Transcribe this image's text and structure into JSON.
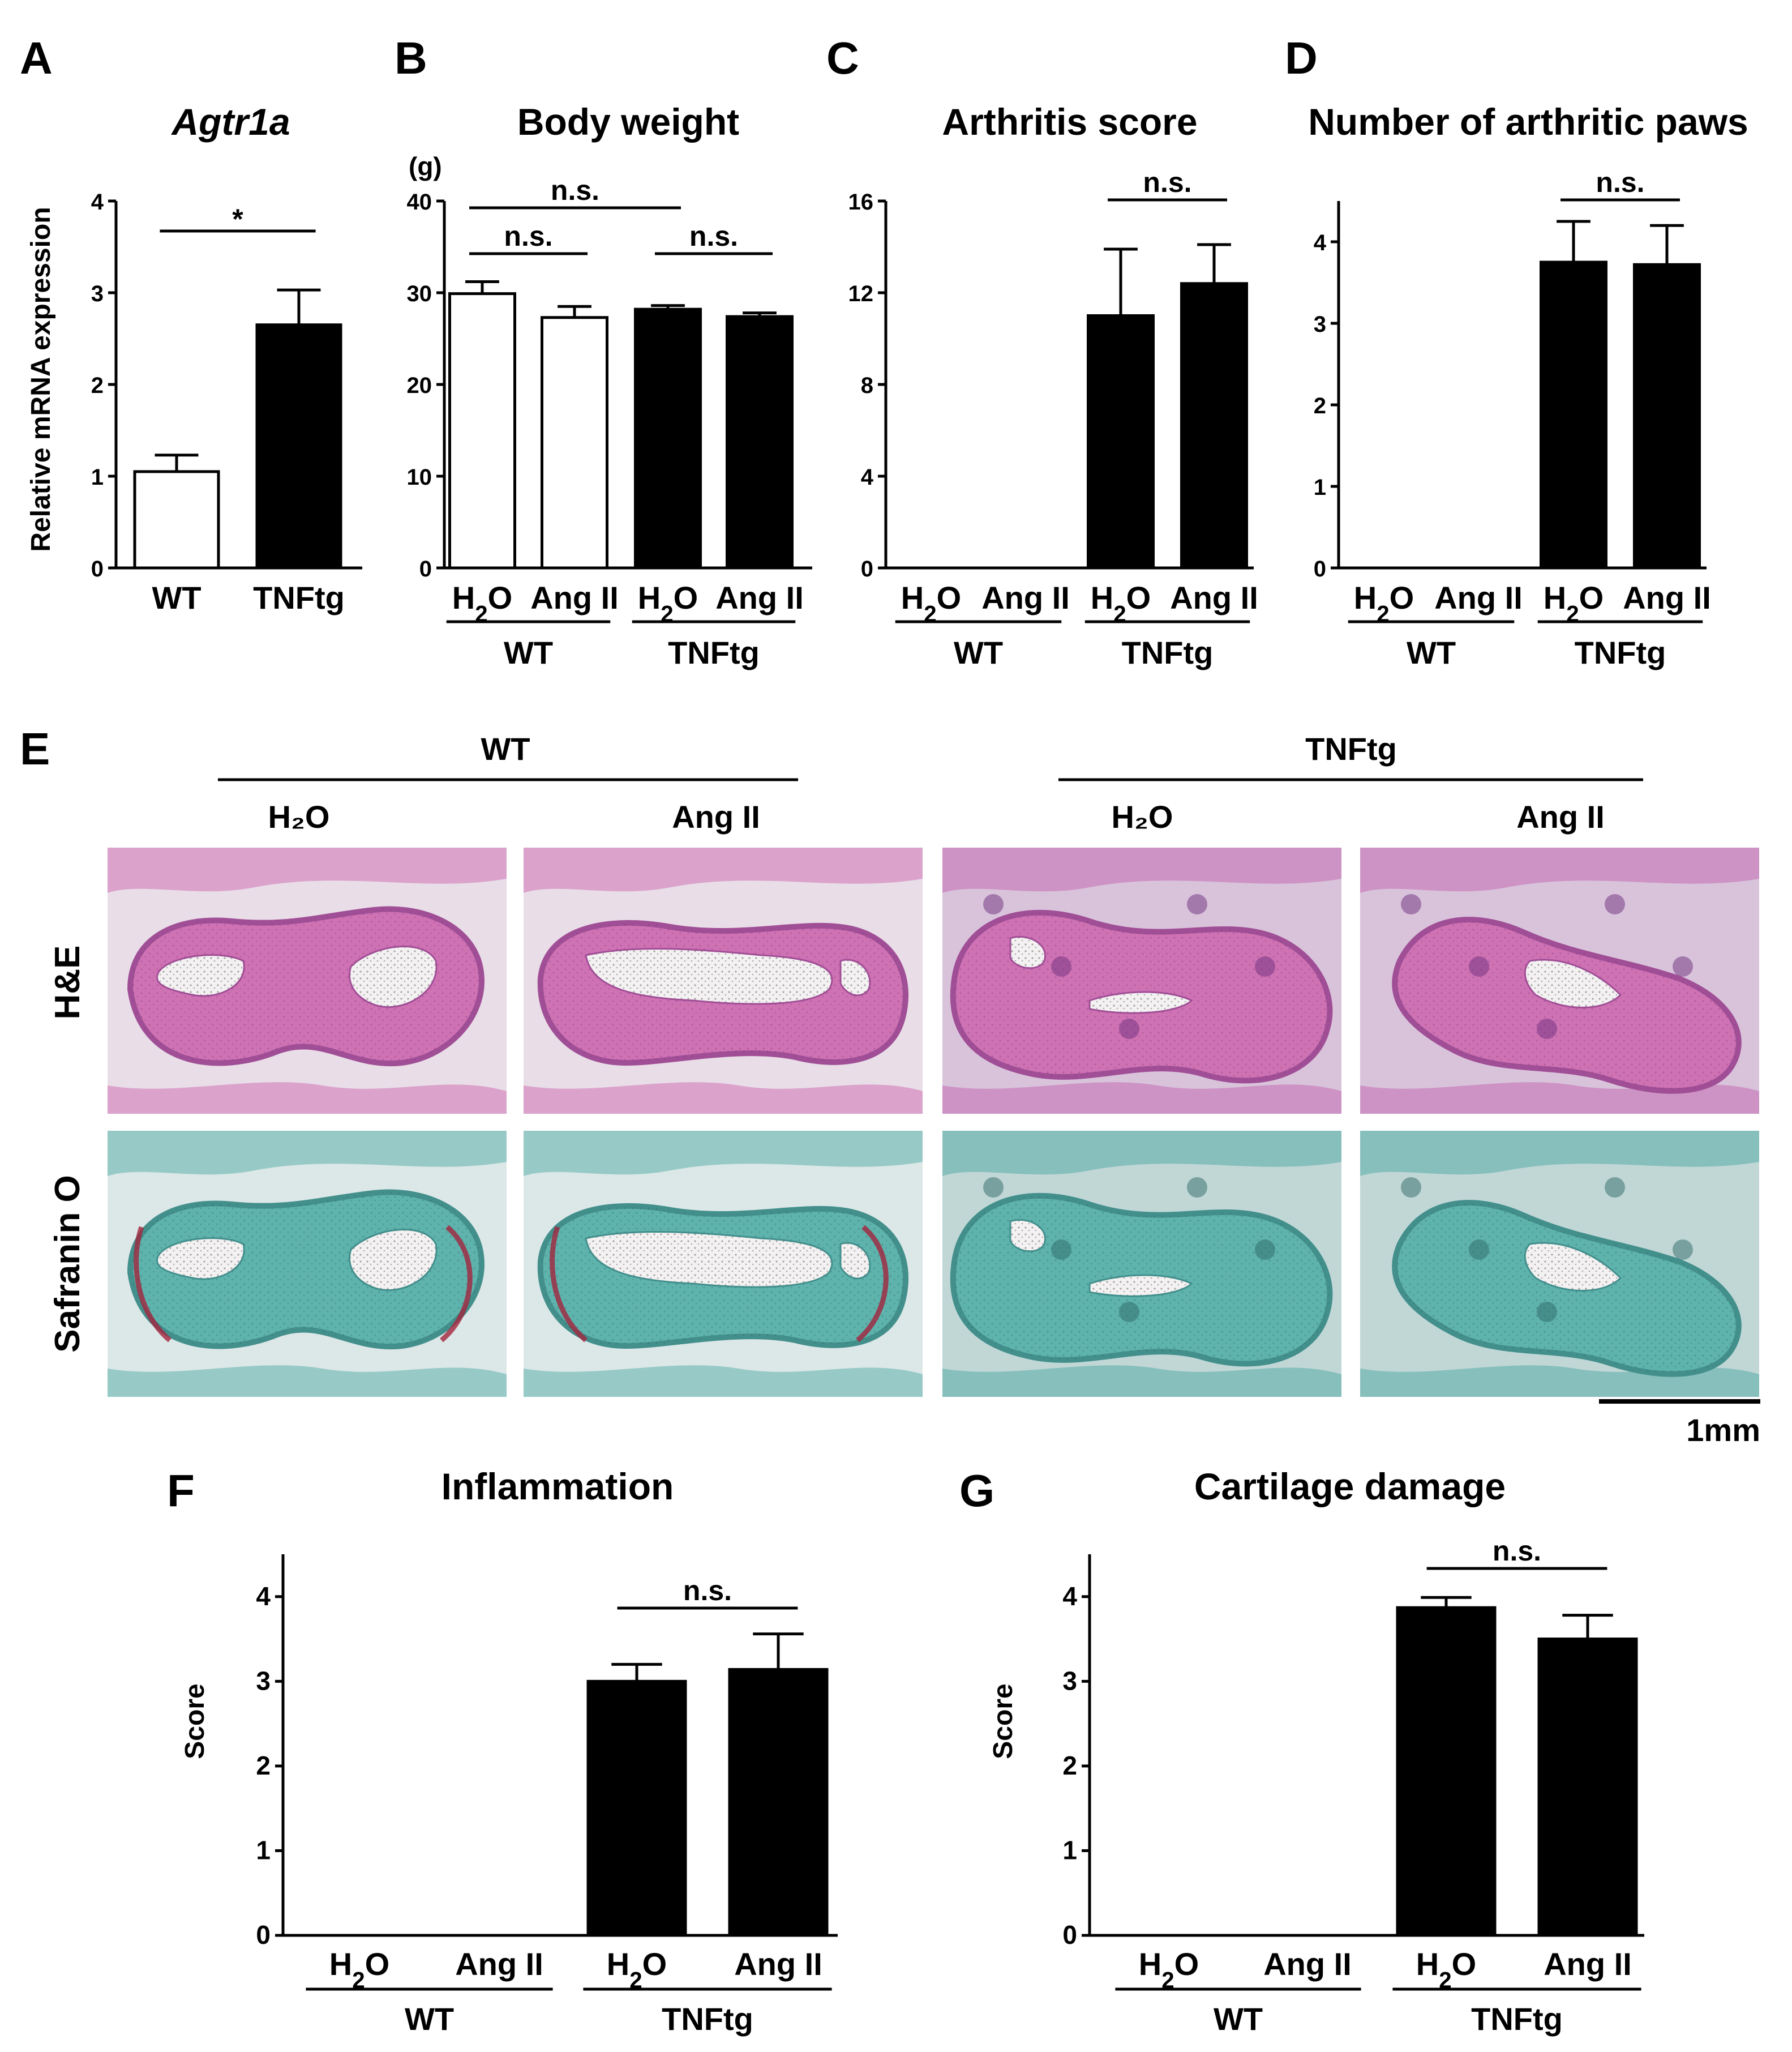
{
  "chart_data": [
    {
      "id": "A",
      "type": "bar",
      "panel_label": "A",
      "title": "Agtr1a",
      "ylabel": "Relative mRNA expression",
      "xlabel": "",
      "ylim": [
        0,
        4
      ],
      "yticks": [
        "0",
        "1",
        "2",
        "3",
        "4"
      ],
      "categories": [
        "WT",
        "TNFtg"
      ],
      "values": [
        1.05,
        2.65
      ],
      "errors": [
        0.18,
        0.38
      ],
      "fills": [
        "white",
        "black"
      ],
      "significance": [
        {
          "label": "*"
        }
      ]
    },
    {
      "id": "B",
      "type": "bar",
      "panel_label": "B",
      "title": "Body weight",
      "unit": "(g)",
      "ylabel": "",
      "xlabel": "",
      "ylim": [
        0,
        40
      ],
      "yticks": [
        "0",
        "10",
        "20",
        "30",
        "40"
      ],
      "categories": [
        "H₂O",
        "Ang II",
        "H₂O",
        "Ang II"
      ],
      "groups": [
        "WT",
        "TNFtg"
      ],
      "values": [
        29.9,
        27.3,
        28.2,
        27.4
      ],
      "errors": [
        1.3,
        1.2,
        0.4,
        0.4
      ],
      "fills": [
        "white",
        "white",
        "black",
        "black"
      ],
      "significance": [
        {
          "label": "n.s."
        },
        {
          "label": "n.s."
        },
        {
          "label": "n.s."
        }
      ]
    },
    {
      "id": "C",
      "type": "bar",
      "panel_label": "C",
      "title": "Arthritis score",
      "ylabel": "",
      "xlabel": "",
      "ylim": [
        0,
        16
      ],
      "yticks": [
        "0",
        "4",
        "8",
        "12",
        "16"
      ],
      "categories": [
        "H₂O",
        "Ang II",
        "H₂O",
        "Ang II"
      ],
      "groups": [
        "WT",
        "TNFtg"
      ],
      "values": [
        0,
        0,
        11.0,
        12.4
      ],
      "errors": [
        0,
        0,
        2.9,
        1.7
      ],
      "fills": [
        "black",
        "black",
        "black",
        "black"
      ],
      "significance": [
        {
          "label": "n.s."
        }
      ]
    },
    {
      "id": "D",
      "type": "bar",
      "panel_label": "D",
      "title": "Number of arthritic paws",
      "ylabel": "",
      "xlabel": "",
      "ylim": [
        0,
        4.5
      ],
      "yticks": [
        "0",
        "1",
        "2",
        "3",
        "4"
      ],
      "categories": [
        "H₂O",
        "Ang II",
        "H₂O",
        "Ang II"
      ],
      "groups": [
        "WT",
        "TNFtg"
      ],
      "values": [
        0,
        0,
        3.75,
        3.72
      ],
      "errors": [
        0,
        0,
        0.5,
        0.48
      ],
      "fills": [
        "black",
        "black",
        "black",
        "black"
      ],
      "significance": [
        {
          "label": "n.s."
        }
      ]
    },
    {
      "id": "F",
      "type": "bar",
      "panel_label": "F",
      "title": "Inflammation",
      "ylabel": "Score",
      "xlabel": "",
      "ylim": [
        0,
        4.5
      ],
      "yticks": [
        "0",
        "1",
        "2",
        "3",
        "4"
      ],
      "categories": [
        "H₂O",
        "Ang II",
        "H₂O",
        "Ang II"
      ],
      "groups": [
        "WT",
        "TNFtg"
      ],
      "values": [
        0,
        0,
        3.0,
        3.14
      ],
      "errors": [
        0,
        0,
        0.2,
        0.42
      ],
      "fills": [
        "black",
        "black",
        "black",
        "black"
      ],
      "significance": [
        {
          "label": "n.s."
        }
      ]
    },
    {
      "id": "G",
      "type": "bar",
      "panel_label": "G",
      "title": "Cartilage damage",
      "ylabel": "Score",
      "xlabel": "",
      "ylim": [
        0,
        4.5
      ],
      "yticks": [
        "0",
        "1",
        "2",
        "3",
        "4"
      ],
      "categories": [
        "H₂O",
        "Ang II",
        "H₂O",
        "Ang II"
      ],
      "groups": [
        "WT",
        "TNFtg"
      ],
      "values": [
        0,
        0,
        3.87,
        3.5
      ],
      "errors": [
        0,
        0,
        0.12,
        0.28
      ],
      "fills": [
        "black",
        "black",
        "black",
        "black"
      ],
      "significance": [
        {
          "label": "n.s."
        }
      ]
    }
  ],
  "histology": {
    "panel_label": "E",
    "group_labels": [
      "WT",
      "TNFtg"
    ],
    "column_labels": [
      "H₂O",
      "Ang II",
      "H₂O",
      "Ang II"
    ],
    "row_labels": [
      "H&E",
      "Safranin O"
    ],
    "scale_bar_label": "1mm",
    "colors": {
      "he_background": "#e9dde8",
      "he_tissue": "#cf72b4",
      "he_edge": "#a04e96",
      "he_inflamed": "#8e4c9e",
      "safranin_background": "#dce7e7",
      "safranin_tissue": "#5fb3ad",
      "safranin_edge": "#428f8c",
      "safranin_red": "#a3243d"
    }
  }
}
